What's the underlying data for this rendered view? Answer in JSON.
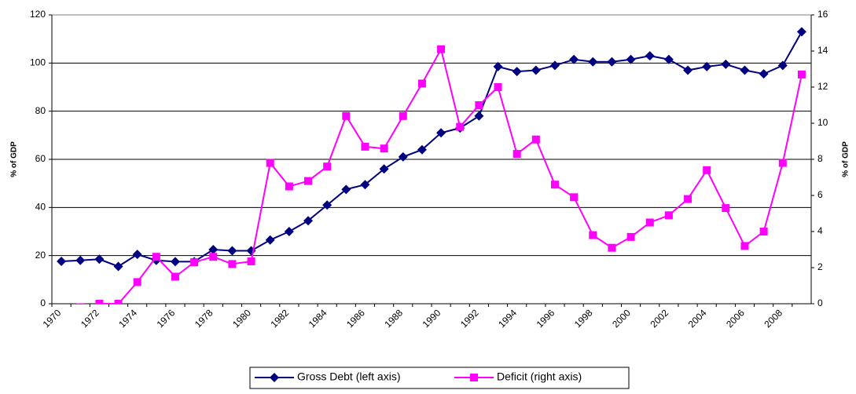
{
  "chart_data": {
    "type": "line",
    "categories": [
      "1970",
      null,
      "1972",
      null,
      "1974",
      null,
      "1976",
      null,
      "1978",
      null,
      "1980",
      null,
      "1982",
      null,
      "1984",
      null,
      "1986",
      null,
      "1988",
      null,
      "1990",
      null,
      "1992",
      null,
      "1994",
      null,
      "1996",
      null,
      "1998",
      null,
      "2000",
      null,
      "2002",
      null,
      "2004",
      null,
      "2006",
      null,
      "2008",
      null
    ],
    "y_label": "% of GDP",
    "y2_label": "% of GDP",
    "ylim": [
      0,
      120
    ],
    "yticks": [
      0,
      20,
      40,
      60,
      80,
      100,
      120
    ],
    "y2lim": [
      0,
      16
    ],
    "y2ticks": [
      0,
      2,
      4,
      6,
      8,
      10,
      12,
      14,
      16
    ],
    "grid": true,
    "legend": "bottom",
    "series": [
      {
        "name": "Gross Debt (left axis)",
        "color": "#000080",
        "marker": "diamond",
        "values": [
          17.6,
          18,
          18.5,
          15.5,
          20.5,
          18,
          17.5,
          17.5,
          22.5,
          22,
          22,
          26.5,
          30,
          34.5,
          41,
          47.5,
          49.5,
          56,
          61,
          64,
          71,
          73,
          78,
          98.5,
          96.5,
          97,
          99,
          101.5,
          100.5,
          100.5,
          101.5,
          103,
          101.5,
          97,
          98.5,
          99.5,
          97,
          95.5,
          99,
          113
        ]
      },
      {
        "name": "Deficit (right axis)",
        "color": "#ff00ff",
        "marker": "square",
        "axis": "y2",
        "values": [
          -0.8,
          -0.2,
          0,
          0,
          1.2,
          2.6,
          1.5,
          2.3,
          2.6,
          2.2,
          2.35,
          7.8,
          6.5,
          6.8,
          7.6,
          10.4,
          8.7,
          8.6,
          10.4,
          12.2,
          14.1,
          9.8,
          11,
          12,
          8.3,
          9.1,
          6.6,
          5.9,
          3.8,
          3.1,
          3.7,
          4.5,
          4.9,
          5.8,
          7.4,
          5.3,
          3.2,
          4,
          7.8,
          12.7
        ]
      }
    ]
  }
}
